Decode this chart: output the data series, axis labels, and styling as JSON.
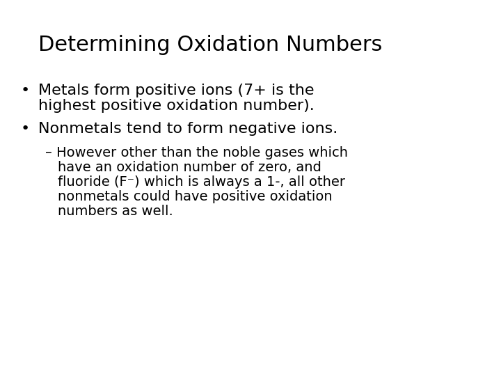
{
  "title": "Determining Oxidation Numbers",
  "background_color": "#ffffff",
  "text_color": "#000000",
  "title_fontsize": 22,
  "body_fontsize": 16,
  "sub_fontsize": 14,
  "bullet1_line1": "Metals form positive ions (7+ is the",
  "bullet1_line2": "highest positive oxidation number).",
  "bullet2": "Nonmetals tend to form negative ions.",
  "sub_line1": "– However other than the noble gases which",
  "sub_line2": "   have an oxidation number of zero, and",
  "sub_line3": "   fluoride (F⁻) which is always a 1-, all other",
  "sub_line4": "   nonmetals could have positive oxidation",
  "sub_line5": "   numbers as well.",
  "font_family": "DejaVu Sans"
}
